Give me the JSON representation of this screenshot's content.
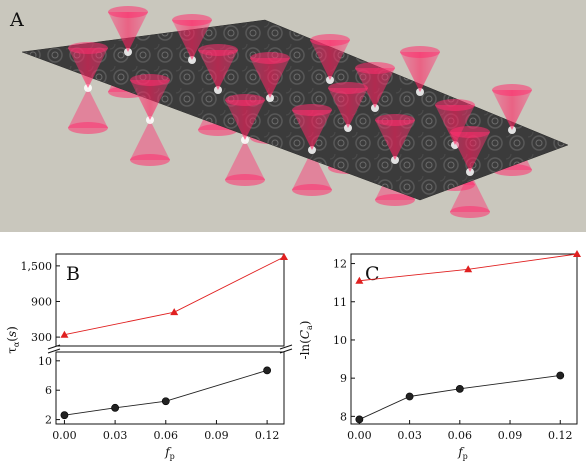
{
  "panel_a": {
    "letter": "A",
    "colors": {
      "background": "#c9c7bd",
      "sheet": "#3a3a3a",
      "beam": "#ff3070"
    }
  },
  "chart_data": [
    {
      "panel": "B",
      "type": "scatter",
      "xlabel": "fp",
      "ylabel": "τα(s)",
      "x_ticks": [
        "0.00",
        "0.03",
        "0.06",
        "0.09",
        "0.12"
      ],
      "xlim": [
        -0.005,
        0.13
      ],
      "broken_axis": true,
      "upper_yticks": [
        "300",
        "900",
        "1,500"
      ],
      "upper_ylim": [
        150,
        1700
      ],
      "lower_yticks": [
        "2",
        "6",
        "10"
      ],
      "lower_ylim": [
        1.4,
        11.2
      ],
      "series": [
        {
          "segment": "upper",
          "marker": "triangle",
          "color": "#e02020",
          "x": [
            0.0,
            0.065,
            0.13
          ],
          "y": [
            340,
            720,
            1650
          ]
        },
        {
          "segment": "lower",
          "marker": "circle",
          "color": "#222222",
          "x": [
            0.0,
            0.03,
            0.06,
            0.12
          ],
          "y": [
            2.6,
            3.6,
            4.5,
            8.7
          ]
        }
      ]
    },
    {
      "panel": "C",
      "type": "scatter",
      "xlabel": "fp",
      "ylabel": "-ln(Ca)",
      "x_ticks": [
        "0.00",
        "0.03",
        "0.06",
        "0.09",
        "0.12"
      ],
      "xlim": [
        -0.005,
        0.13
      ],
      "y_ticks": [
        "8",
        "9",
        "10",
        "11",
        "12"
      ],
      "ylim": [
        7.8,
        12.25
      ],
      "series": [
        {
          "marker": "triangle",
          "color": "#e02020",
          "x": [
            0.0,
            0.065,
            0.13
          ],
          "y": [
            11.55,
            11.85,
            12.25
          ]
        },
        {
          "marker": "circle",
          "color": "#222222",
          "x": [
            0.0,
            0.03,
            0.06,
            0.12
          ],
          "y": [
            7.92,
            8.52,
            8.72,
            9.07
          ]
        }
      ]
    }
  ]
}
